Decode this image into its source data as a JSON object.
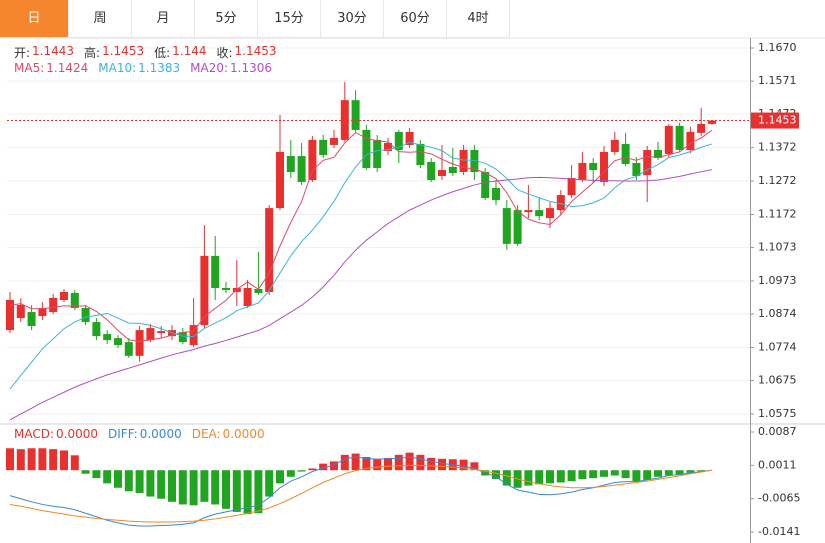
{
  "tabs": {
    "items": [
      "日",
      "周",
      "月",
      "5分",
      "15分",
      "30分",
      "60分",
      "4时"
    ],
    "active": 0
  },
  "chart_data": [
    {
      "type": "candlestick",
      "ohlc_labels": [
        "开:",
        "高:",
        "低:",
        "收:"
      ],
      "up_color": "#e8312f",
      "down_color": "#1fa51f",
      "label_color": "#333333",
      "open": [
        1.0826,
        1.0862,
        1.088,
        1.0868,
        1.088,
        1.0916,
        1.0937,
        1.0892,
        1.085,
        1.0814,
        1.0802,
        1.079,
        1.0749,
        1.0796,
        1.0817,
        1.0808,
        1.082,
        1.0781,
        1.0841,
        1.1048,
        1.0952,
        1.094,
        1.0898,
        1.0949,
        1.094,
        1.1191,
        1.1347,
        1.1347,
        1.1275,
        1.1395,
        1.138,
        1.1395,
        1.1514,
        1.1425,
        1.1395,
        1.1362,
        1.1419,
        1.138,
        1.1383,
        1.1329,
        1.1287,
        1.1314,
        1.1299,
        1.1365,
        1.1299,
        1.1251,
        1.1191,
        1.1185,
        1.1179,
        1.1185,
        1.1161,
        1.1185,
        1.123,
        1.1275,
        1.1326,
        1.1269,
        1.1359,
        1.1383,
        1.1326,
        1.129,
        1.1365,
        1.1353,
        1.1437,
        1.1365,
        1.1416,
        1.1443
      ],
      "high": [
        1.094,
        1.0922,
        1.0901,
        1.091,
        1.0934,
        1.0949,
        1.0946,
        1.0901,
        1.0862,
        1.0826,
        1.0811,
        1.0802,
        1.0838,
        1.0844,
        1.0838,
        1.0841,
        1.0832,
        1.0922,
        1.114,
        1.1108,
        1.097,
        1.1036,
        1.0976,
        1.106,
        1.12,
        1.147,
        1.1395,
        1.1386,
        1.1407,
        1.141,
        1.1425,
        1.1568,
        1.1544,
        1.144,
        1.141,
        1.1401,
        1.1425,
        1.1431,
        1.1395,
        1.1341,
        1.138,
        1.1371,
        1.138,
        1.138,
        1.1311,
        1.1275,
        1.1215,
        1.12,
        1.126,
        1.1221,
        1.1209,
        1.1245,
        1.132,
        1.1359,
        1.1341,
        1.1377,
        1.1419,
        1.1416,
        1.1344,
        1.1377,
        1.1389,
        1.1443,
        1.1446,
        1.1434,
        1.1491,
        1.1453
      ],
      "low": [
        1.0817,
        1.085,
        1.0826,
        1.0856,
        1.0874,
        1.091,
        1.0886,
        1.0841,
        1.0796,
        1.0784,
        1.0772,
        1.0743,
        1.0731,
        1.079,
        1.0802,
        1.0796,
        1.0784,
        1.0775,
        1.0832,
        1.0916,
        1.0937,
        1.0898,
        1.0892,
        1.0931,
        1.0931,
        1.1185,
        1.1281,
        1.126,
        1.1269,
        1.1341,
        1.1371,
        1.1389,
        1.1416,
        1.1305,
        1.1299,
        1.135,
        1.1326,
        1.1371,
        1.1311,
        1.1269,
        1.1275,
        1.1287,
        1.129,
        1.1275,
        1.1215,
        1.12,
        1.1066,
        1.1078,
        1.1161,
        1.1155,
        1.1131,
        1.117,
        1.1221,
        1.1269,
        1.1266,
        1.1257,
        1.135,
        1.1317,
        1.1275,
        1.1209,
        1.1335,
        1.1341,
        1.1359,
        1.1356,
        1.1407,
        1.144
      ],
      "close": [
        1.0916,
        1.0901,
        1.0838,
        1.0892,
        1.0922,
        1.094,
        1.0892,
        1.085,
        1.0808,
        1.0796,
        1.0781,
        1.0749,
        1.0826,
        1.0832,
        1.0823,
        1.0826,
        1.079,
        1.0841,
        1.1048,
        1.0952,
        1.0946,
        1.0952,
        1.0952,
        1.0937,
        1.1191,
        1.1359,
        1.1299,
        1.1269,
        1.1395,
        1.135,
        1.1401,
        1.1514,
        1.1425,
        1.1311,
        1.1311,
        1.1386,
        1.1365,
        1.1419,
        1.132,
        1.1275,
        1.1305,
        1.1296,
        1.1365,
        1.1299,
        1.1221,
        1.1215,
        1.1084,
        1.1084,
        1.1185,
        1.1167,
        1.1191,
        1.123,
        1.1281,
        1.1326,
        1.1305,
        1.1359,
        1.1395,
        1.1323,
        1.1287,
        1.1365,
        1.1341,
        1.1437,
        1.1365,
        1.1419,
        1.1443,
        1.1453
      ],
      "series": [
        {
          "name": "MA5:",
          "color": "#e4476a",
          "values": [
            1.09,
            1.0905,
            1.089,
            1.089,
            1.0894,
            1.0899,
            1.0897,
            1.0899,
            1.0882,
            1.0857,
            1.0825,
            1.0797,
            1.0792,
            1.0797,
            1.0802,
            1.0811,
            1.0819,
            1.0822,
            1.0866,
            1.0891,
            1.0915,
            1.0948,
            1.097,
            1.0948,
            1.0996,
            1.1078,
            1.1148,
            1.1211,
            1.1303,
            1.1334,
            1.1343,
            1.1386,
            1.1417,
            1.14,
            1.1392,
            1.1389,
            1.136,
            1.1358,
            1.136,
            1.1353,
            1.1337,
            1.1323,
            1.1312,
            1.1308,
            1.1297,
            1.1279,
            1.1237,
            1.1181,
            1.1158,
            1.1147,
            1.1142,
            1.1171,
            1.1211,
            1.1239,
            1.1267,
            1.13,
            1.1333,
            1.1342,
            1.1334,
            1.1346,
            1.1342,
            1.1351,
            1.1359,
            1.1385,
            1.1401,
            1.1424
          ]
        },
        {
          "name": "MA10:",
          "color": "#3cb4d8",
          "values": [
            1.065,
            1.069,
            1.073,
            1.077,
            1.08,
            1.083,
            1.085,
            1.0865,
            1.087,
            1.0876,
            1.0862,
            1.0847,
            1.0846,
            1.084,
            1.083,
            1.0818,
            1.0808,
            1.0807,
            1.0831,
            1.0847,
            1.0863,
            1.0884,
            1.0896,
            1.0907,
            1.0944,
            1.0997,
            1.1048,
            1.1091,
            1.1125,
            1.1165,
            1.1211,
            1.1267,
            1.1314,
            1.1351,
            1.1363,
            1.1366,
            1.1373,
            1.1388,
            1.138,
            1.1373,
            1.1363,
            1.1341,
            1.1335,
            1.1334,
            1.1325,
            1.1308,
            1.128,
            1.1246,
            1.1233,
            1.1222,
            1.1211,
            1.1204,
            1.1196,
            1.1198,
            1.1207,
            1.1221,
            1.1252,
            1.1276,
            1.1286,
            1.1306,
            1.1321,
            1.1342,
            1.135,
            1.136,
            1.1373,
            1.1383
          ]
        },
        {
          "name": "MA20:",
          "color": "#b14fc1",
          "values": [
            1.0557,
            1.0575,
            1.0592,
            1.061,
            1.0625,
            1.064,
            1.0655,
            1.0668,
            1.068,
            1.0692,
            1.0702,
            1.0712,
            1.0722,
            1.0732,
            1.0742,
            1.0752,
            1.076,
            1.0768,
            1.0778,
            1.0786,
            1.0795,
            1.0805,
            1.0815,
            1.0825,
            1.084,
            1.086,
            1.088,
            1.09,
            1.0925,
            1.0955,
            1.099,
            1.103,
            1.1065,
            1.1095,
            1.112,
            1.1145,
            1.1165,
            1.1185,
            1.12,
            1.1215,
            1.1228,
            1.124,
            1.125,
            1.126,
            1.1268,
            1.1272,
            1.1275,
            1.1278,
            1.1282,
            1.1283,
            1.1282,
            1.128,
            1.1278,
            1.1276,
            1.1274,
            1.1273,
            1.1273,
            1.1272,
            1.1272,
            1.1273,
            1.1275,
            1.128,
            1.1286,
            1.1293,
            1.13,
            1.1306
          ]
        }
      ],
      "ylim": [
        1.0548,
        1.17
      ],
      "yticks": [
        {
          "value": 1.167,
          "label": "1.1670"
        },
        1.1571,
        1.1472,
        1.1372,
        1.1272,
        1.1172,
        1.1073,
        1.0973,
        1.0874,
        1.0774,
        1.0675,
        1.0575
      ],
      "grid": true
    },
    {
      "type": "macd",
      "series": [
        {
          "name": "MACD:",
          "kind": "bar",
          "color": "#e8312f",
          "down_color": "#1fa51f",
          "legend_label": "0.0000",
          "values": [
            0.005,
            0.0048,
            0.005,
            0.005,
            0.0048,
            0.0045,
            0.0034,
            -0.0008,
            -0.0018,
            -0.003,
            -0.004,
            -0.0048,
            -0.0052,
            -0.006,
            -0.0065,
            -0.0072,
            -0.0078,
            -0.008,
            -0.0072,
            -0.0078,
            -0.0088,
            -0.0095,
            -0.01,
            -0.0098,
            -0.006,
            -0.003,
            -0.0015,
            -0.0003,
            0.0004,
            0.0015,
            0.002,
            0.0035,
            0.0038,
            0.003,
            0.0026,
            0.0028,
            0.0035,
            0.004,
            0.0035,
            0.0028,
            0.0026,
            0.0025,
            0.0024,
            0.0018,
            -0.0012,
            -0.002,
            -0.0035,
            -0.004,
            -0.0035,
            -0.0032,
            -0.003,
            -0.0028,
            -0.0025,
            -0.002,
            -0.0018,
            -0.0015,
            -0.0012,
            -0.0018,
            -0.0025,
            -0.0022,
            -0.0015,
            -0.0012,
            -0.001,
            -0.0006,
            -0.0002,
            0
          ]
        },
        {
          "name": "DIFF:",
          "kind": "line",
          "color": "#3a87d8",
          "legend_label": "0.0000",
          "values": [
            -0.0058,
            -0.0065,
            -0.0072,
            -0.0078,
            -0.0082,
            -0.0085,
            -0.009,
            -0.0098,
            -0.0106,
            -0.0114,
            -0.012,
            -0.0125,
            -0.0127,
            -0.0127,
            -0.0126,
            -0.0125,
            -0.0123,
            -0.012,
            -0.0108,
            -0.01,
            -0.0095,
            -0.009,
            -0.0085,
            -0.008,
            -0.0062,
            -0.004,
            -0.0025,
            -0.0015,
            -0.0003,
            0.0005,
            0.0012,
            0.0025,
            0.003,
            0.0027,
            0.0025,
            0.0026,
            0.0027,
            0.003,
            0.0026,
            0.002,
            0.0016,
            0.0012,
            0.001,
            0.0004,
            -0.0006,
            -0.0015,
            -0.0032,
            -0.0045,
            -0.005,
            -0.0055,
            -0.0056,
            -0.0054,
            -0.005,
            -0.0044,
            -0.004,
            -0.0034,
            -0.0028,
            -0.0026,
            -0.0026,
            -0.0022,
            -0.0018,
            -0.0012,
            -0.001,
            -0.0006,
            -0.0003,
            0
          ]
        },
        {
          "name": "DEA:",
          "kind": "line",
          "color": "#ef8a27",
          "legend_label": "0.0000",
          "values": [
            -0.0078,
            -0.0082,
            -0.0087,
            -0.0092,
            -0.0096,
            -0.01,
            -0.0104,
            -0.0107,
            -0.011,
            -0.0112,
            -0.0114,
            -0.0116,
            -0.0117,
            -0.0118,
            -0.0118,
            -0.0118,
            -0.0117,
            -0.0116,
            -0.0114,
            -0.0111,
            -0.0107,
            -0.0103,
            -0.0098,
            -0.0093,
            -0.0086,
            -0.0076,
            -0.0065,
            -0.0053,
            -0.004,
            -0.0028,
            -0.0018,
            -0.0008,
            -0.0001,
            0.0004,
            0.0007,
            0.0009,
            0.001,
            0.0011,
            0.0011,
            0.001,
            0.0009,
            0.0007,
            0.0005,
            0.0002,
            -0.0002,
            -0.0007,
            -0.0013,
            -0.002,
            -0.0026,
            -0.0031,
            -0.0035,
            -0.0038,
            -0.004,
            -0.004,
            -0.0039,
            -0.0037,
            -0.0034,
            -0.0031,
            -0.0028,
            -0.0025,
            -0.0021,
            -0.0017,
            -0.0013,
            -0.0008,
            -0.0004,
            0
          ]
        }
      ],
      "ylim": [
        -0.0159,
        0.0103
      ],
      "yticks": [
        0.0087,
        0.0011,
        -0.0065,
        -0.0141
      ]
    }
  ]
}
